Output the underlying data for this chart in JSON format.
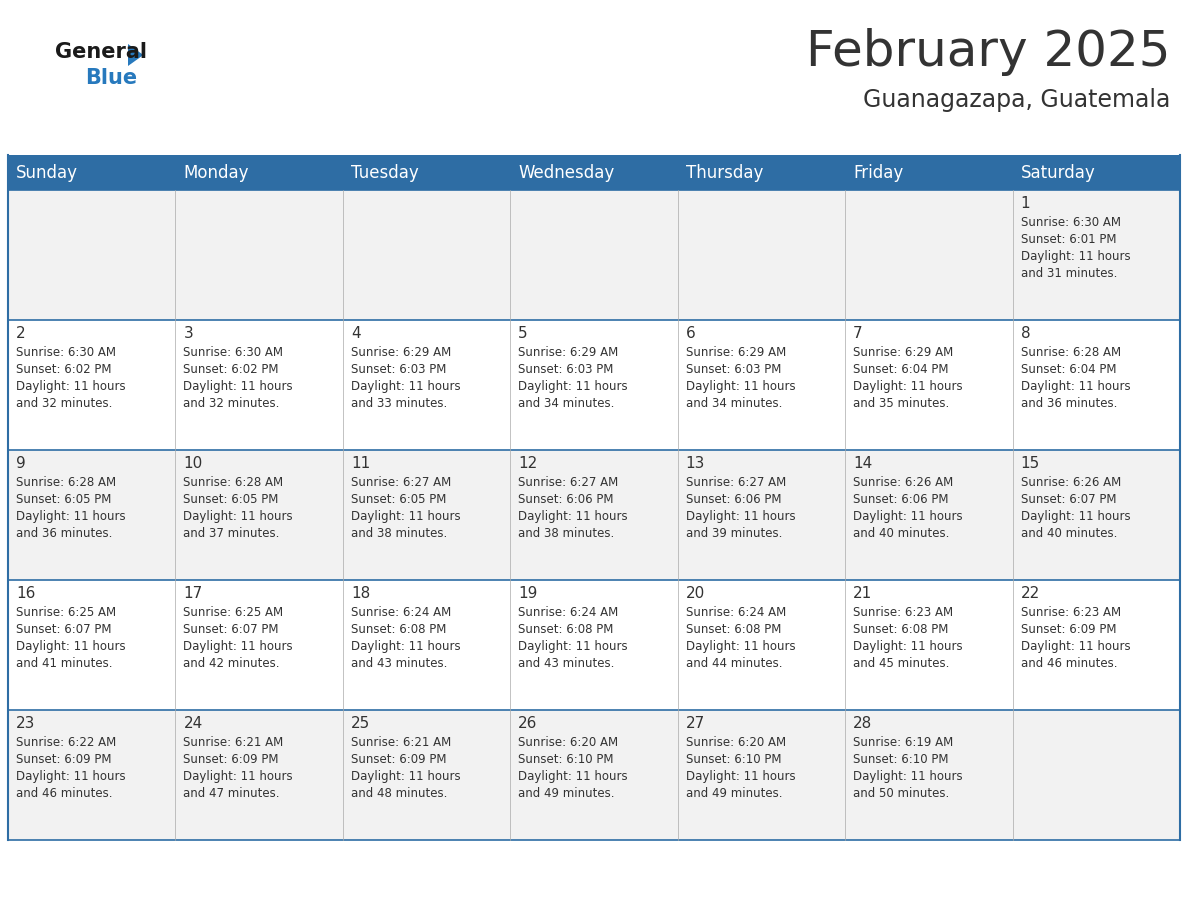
{
  "title": "February 2025",
  "subtitle": "Guanagazapa, Guatemala",
  "header_bg": "#2E6DA4",
  "header_text": "#FFFFFF",
  "cell_bg_row0": "#F2F2F2",
  "cell_bg_odd": "#F2F2F2",
  "cell_bg_even": "#FFFFFF",
  "day_names": [
    "Sunday",
    "Monday",
    "Tuesday",
    "Wednesday",
    "Thursday",
    "Friday",
    "Saturday"
  ],
  "days": [
    {
      "day": 1,
      "col": 6,
      "row": 0,
      "sunrise": "6:30 AM",
      "sunset": "6:01 PM",
      "daylight": "11 hours and 31 minutes."
    },
    {
      "day": 2,
      "col": 0,
      "row": 1,
      "sunrise": "6:30 AM",
      "sunset": "6:02 PM",
      "daylight": "11 hours and 32 minutes."
    },
    {
      "day": 3,
      "col": 1,
      "row": 1,
      "sunrise": "6:30 AM",
      "sunset": "6:02 PM",
      "daylight": "11 hours and 32 minutes."
    },
    {
      "day": 4,
      "col": 2,
      "row": 1,
      "sunrise": "6:29 AM",
      "sunset": "6:03 PM",
      "daylight": "11 hours and 33 minutes."
    },
    {
      "day": 5,
      "col": 3,
      "row": 1,
      "sunrise": "6:29 AM",
      "sunset": "6:03 PM",
      "daylight": "11 hours and 34 minutes."
    },
    {
      "day": 6,
      "col": 4,
      "row": 1,
      "sunrise": "6:29 AM",
      "sunset": "6:03 PM",
      "daylight": "11 hours and 34 minutes."
    },
    {
      "day": 7,
      "col": 5,
      "row": 1,
      "sunrise": "6:29 AM",
      "sunset": "6:04 PM",
      "daylight": "11 hours and 35 minutes."
    },
    {
      "day": 8,
      "col": 6,
      "row": 1,
      "sunrise": "6:28 AM",
      "sunset": "6:04 PM",
      "daylight": "11 hours and 36 minutes."
    },
    {
      "day": 9,
      "col": 0,
      "row": 2,
      "sunrise": "6:28 AM",
      "sunset": "6:05 PM",
      "daylight": "11 hours and 36 minutes."
    },
    {
      "day": 10,
      "col": 1,
      "row": 2,
      "sunrise": "6:28 AM",
      "sunset": "6:05 PM",
      "daylight": "11 hours and 37 minutes."
    },
    {
      "day": 11,
      "col": 2,
      "row": 2,
      "sunrise": "6:27 AM",
      "sunset": "6:05 PM",
      "daylight": "11 hours and 38 minutes."
    },
    {
      "day": 12,
      "col": 3,
      "row": 2,
      "sunrise": "6:27 AM",
      "sunset": "6:06 PM",
      "daylight": "11 hours and 38 minutes."
    },
    {
      "day": 13,
      "col": 4,
      "row": 2,
      "sunrise": "6:27 AM",
      "sunset": "6:06 PM",
      "daylight": "11 hours and 39 minutes."
    },
    {
      "day": 14,
      "col": 5,
      "row": 2,
      "sunrise": "6:26 AM",
      "sunset": "6:06 PM",
      "daylight": "11 hours and 40 minutes."
    },
    {
      "day": 15,
      "col": 6,
      "row": 2,
      "sunrise": "6:26 AM",
      "sunset": "6:07 PM",
      "daylight": "11 hours and 40 minutes."
    },
    {
      "day": 16,
      "col": 0,
      "row": 3,
      "sunrise": "6:25 AM",
      "sunset": "6:07 PM",
      "daylight": "11 hours and 41 minutes."
    },
    {
      "day": 17,
      "col": 1,
      "row": 3,
      "sunrise": "6:25 AM",
      "sunset": "6:07 PM",
      "daylight": "11 hours and 42 minutes."
    },
    {
      "day": 18,
      "col": 2,
      "row": 3,
      "sunrise": "6:24 AM",
      "sunset": "6:08 PM",
      "daylight": "11 hours and 43 minutes."
    },
    {
      "day": 19,
      "col": 3,
      "row": 3,
      "sunrise": "6:24 AM",
      "sunset": "6:08 PM",
      "daylight": "11 hours and 43 minutes."
    },
    {
      "day": 20,
      "col": 4,
      "row": 3,
      "sunrise": "6:24 AM",
      "sunset": "6:08 PM",
      "daylight": "11 hours and 44 minutes."
    },
    {
      "day": 21,
      "col": 5,
      "row": 3,
      "sunrise": "6:23 AM",
      "sunset": "6:08 PM",
      "daylight": "11 hours and 45 minutes."
    },
    {
      "day": 22,
      "col": 6,
      "row": 3,
      "sunrise": "6:23 AM",
      "sunset": "6:09 PM",
      "daylight": "11 hours and 46 minutes."
    },
    {
      "day": 23,
      "col": 0,
      "row": 4,
      "sunrise": "6:22 AM",
      "sunset": "6:09 PM",
      "daylight": "11 hours and 46 minutes."
    },
    {
      "day": 24,
      "col": 1,
      "row": 4,
      "sunrise": "6:21 AM",
      "sunset": "6:09 PM",
      "daylight": "11 hours and 47 minutes."
    },
    {
      "day": 25,
      "col": 2,
      "row": 4,
      "sunrise": "6:21 AM",
      "sunset": "6:09 PM",
      "daylight": "11 hours and 48 minutes."
    },
    {
      "day": 26,
      "col": 3,
      "row": 4,
      "sunrise": "6:20 AM",
      "sunset": "6:10 PM",
      "daylight": "11 hours and 49 minutes."
    },
    {
      "day": 27,
      "col": 4,
      "row": 4,
      "sunrise": "6:20 AM",
      "sunset": "6:10 PM",
      "daylight": "11 hours and 49 minutes."
    },
    {
      "day": 28,
      "col": 5,
      "row": 4,
      "sunrise": "6:19 AM",
      "sunset": "6:10 PM",
      "daylight": "11 hours and 50 minutes."
    }
  ],
  "n_rows": 5,
  "n_cols": 7,
  "title_fontsize": 36,
  "subtitle_fontsize": 17,
  "day_number_fontsize": 11,
  "cell_text_fontsize": 8.5,
  "header_fontsize": 12,
  "border_color": "#2E6DA4",
  "text_color": "#333333",
  "logo_general_color": "#1A1A1A",
  "logo_blue_color": "#2779BD"
}
